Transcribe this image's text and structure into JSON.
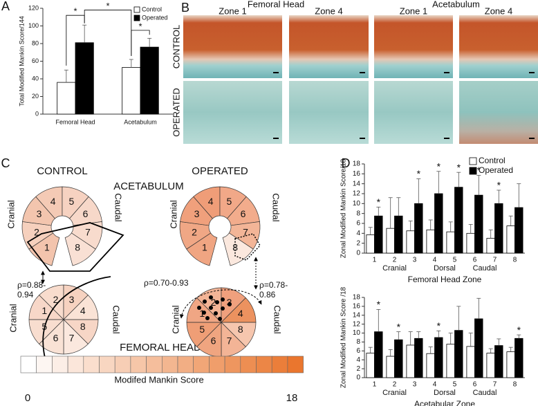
{
  "panel_labels": [
    "A",
    "B",
    "C",
    "D"
  ],
  "chart_data": [
    {
      "type": "bar",
      "ylabel": "Total Modified Mankin Score/144",
      "categories": [
        "Femoral Head",
        "Acetabulum"
      ],
      "series": [
        {
          "name": "Control",
          "color": "#ffffff",
          "values": [
            36,
            53
          ],
          "errors": [
            14,
            9
          ]
        },
        {
          "name": "Operated",
          "color": "#000000",
          "values": [
            81,
            76
          ],
          "errors": [
            20,
            10
          ]
        }
      ],
      "ylim": [
        0,
        120
      ],
      "yticks": [
        0,
        20,
        40,
        60,
        80,
        100,
        120
      ],
      "legend": "top-right",
      "annotations": [
        "*",
        "*",
        "*"
      ]
    },
    {
      "type": "bar",
      "ylabel": "Zonal Modified Mankin Score/18",
      "xlabel": "Femoral Head Zone",
      "categories": [
        "1",
        "2",
        "3",
        "4",
        "5",
        "6",
        "7",
        "8"
      ],
      "series": [
        {
          "name": "Control",
          "color": "#ffffff",
          "values": [
            3.7,
            5.0,
            4.5,
            4.7,
            4.3,
            4.0,
            3.0,
            5.5
          ],
          "errors": [
            1.5,
            6.2,
            2.0,
            2.0,
            2.0,
            1.8,
            1.7,
            2.0
          ]
        },
        {
          "name": "Operated",
          "color": "#000000",
          "values": [
            7.5,
            7.5,
            10.0,
            12.0,
            13.3,
            11.7,
            10.0,
            9.2
          ],
          "errors": [
            1.8,
            3.7,
            5.0,
            4.5,
            3.0,
            4.0,
            2.7,
            4.8
          ]
        }
      ],
      "ylim": [
        0,
        18
      ],
      "yticks": [
        0,
        2,
        4,
        6,
        8,
        10,
        12,
        14,
        16,
        18
      ],
      "legend": "top-right",
      "group_labels": [
        {
          "text": "Cranial",
          "categories": [
            "2"
          ]
        },
        {
          "text": "Dorsal",
          "categories": [
            "4",
            "5"
          ]
        },
        {
          "text": "Caudal",
          "categories": [
            "6",
            "7"
          ]
        }
      ],
      "annotations": [
        {
          "text": "*",
          "category": "1"
        },
        {
          "text": "*",
          "category": "3"
        },
        {
          "text": "*",
          "category": "4"
        },
        {
          "text": "*",
          "category": "5"
        },
        {
          "text": "*",
          "category": "6"
        },
        {
          "text": "*",
          "category": "7"
        }
      ]
    },
    {
      "type": "bar",
      "ylabel": "Zonal Modified Mankin Score /18",
      "xlabel": "Acetabular Zone",
      "categories": [
        "1",
        "2",
        "3",
        "4",
        "5",
        "6",
        "7",
        "8"
      ],
      "series": [
        {
          "name": "Control",
          "color": "#ffffff",
          "values": [
            5.5,
            4.8,
            7.3,
            5.4,
            7.5,
            7.0,
            5.5,
            5.8
          ],
          "errors": [
            1.3,
            1.5,
            3.0,
            1.5,
            2.5,
            3.0,
            1.0,
            1.0
          ]
        },
        {
          "name": "Operated",
          "color": "#000000",
          "values": [
            10.3,
            8.5,
            8.8,
            9.0,
            10.6,
            13.2,
            7.2,
            8.8
          ],
          "errors": [
            5.0,
            1.8,
            1.5,
            1.5,
            5.4,
            4.6,
            1.5,
            0.8
          ]
        }
      ],
      "ylim": [
        0,
        18
      ],
      "yticks": [
        0,
        2,
        4,
        6,
        8,
        10,
        12,
        14,
        16,
        18
      ],
      "group_labels": [
        {
          "text": "Cranial",
          "categories": [
            "2"
          ]
        },
        {
          "text": "Dorsal",
          "categories": [
            "4",
            "5"
          ]
        },
        {
          "text": "Caudal",
          "categories": [
            "6",
            "7"
          ]
        }
      ],
      "annotations": [
        {
          "text": "*",
          "category": "1"
        },
        {
          "text": "*",
          "category": "2"
        },
        {
          "text": "*",
          "category": "4"
        },
        {
          "text": "*",
          "category": "8"
        }
      ]
    }
  ],
  "histology": {
    "groups": [
      {
        "title": "Femoral Head",
        "zones": [
          "Zone 1",
          "Zone 4"
        ]
      },
      {
        "title": "Acetabulum",
        "zones": [
          "Zone 1",
          "Zone 4"
        ]
      }
    ],
    "rows": [
      "CONTROL",
      "OPERATED"
    ]
  },
  "diagram": {
    "columns": [
      "CONTROL",
      "OPERATED"
    ],
    "acetabulum": "ACETABULUM",
    "femoral_head": "FEMORAL HEAD",
    "cranial": "Cranial",
    "caudal": "Caudal",
    "zones": [
      "1",
      "2",
      "3",
      "4",
      "5",
      "6",
      "7",
      "8"
    ],
    "correlations": [
      {
        "line1": "ρ=0.88-",
        "line2": "0.94"
      },
      {
        "line1": "ρ=0.78-",
        "line2": "0.86"
      },
      {
        "line1": "ρ=0.70-0.93"
      }
    ],
    "scale": {
      "min": "0",
      "label": "Modifed Mankin Score",
      "max": "18"
    }
  }
}
